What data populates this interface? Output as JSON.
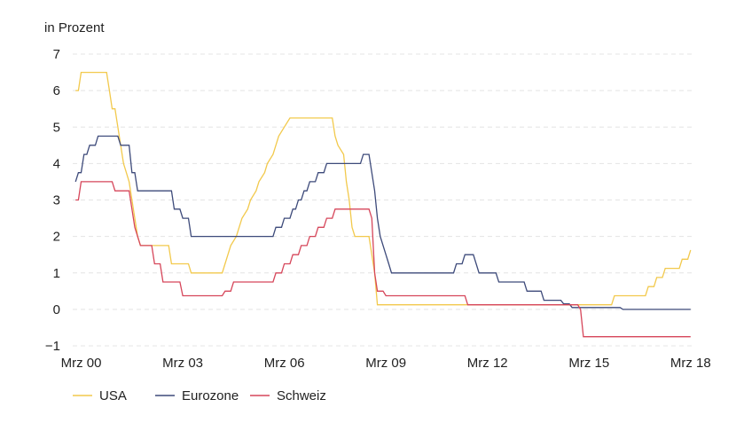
{
  "chart_data": {
    "type": "line",
    "ylabel": "in Prozent",
    "ylim": [
      -1,
      7
    ],
    "xlim": [
      "1999-12",
      "2018-04"
    ],
    "y_ticks": [
      "-1",
      "0",
      "1",
      "2",
      "3",
      "4",
      "5",
      "6",
      "7"
    ],
    "x_ticks": [
      {
        "label": "Mrz 00",
        "date": "2000-03"
      },
      {
        "label": "Mrz 03",
        "date": "2003-03"
      },
      {
        "label": "Mrz 06",
        "date": "2006-03"
      },
      {
        "label": "Mrz 09",
        "date": "2009-03"
      },
      {
        "label": "Mrz 12",
        "date": "2012-03"
      },
      {
        "label": "Mrz 15",
        "date": "2015-03"
      },
      {
        "label": "Mrz 18",
        "date": "2018-03"
      }
    ],
    "grid": "horizontal dashed",
    "legend_position": "bottom-left",
    "series": [
      {
        "name": "USA",
        "color": "#f2c94c",
        "points": [
          [
            "2000-01",
            6.0
          ],
          [
            "2000-02",
            6.0
          ],
          [
            "2000-03",
            6.5
          ],
          [
            "2000-05",
            6.5
          ],
          [
            "2000-12",
            6.5
          ],
          [
            "2001-01",
            6.0
          ],
          [
            "2001-02",
            5.5
          ],
          [
            "2001-03",
            5.5
          ],
          [
            "2001-04",
            5.0
          ],
          [
            "2001-05",
            4.5
          ],
          [
            "2001-06",
            4.0
          ],
          [
            "2001-07",
            3.75
          ],
          [
            "2001-08",
            3.5
          ],
          [
            "2001-09",
            3.0
          ],
          [
            "2001-10",
            2.5
          ],
          [
            "2001-11",
            2.0
          ],
          [
            "2001-12",
            1.75
          ],
          [
            "2002-10",
            1.75
          ],
          [
            "2002-11",
            1.25
          ],
          [
            "2003-05",
            1.25
          ],
          [
            "2003-06",
            1.0
          ],
          [
            "2004-05",
            1.0
          ],
          [
            "2004-06",
            1.25
          ],
          [
            "2004-07",
            1.5
          ],
          [
            "2004-08",
            1.75
          ],
          [
            "2004-10",
            2.0
          ],
          [
            "2004-11",
            2.25
          ],
          [
            "2004-12",
            2.5
          ],
          [
            "2005-02",
            2.75
          ],
          [
            "2005-03",
            3.0
          ],
          [
            "2005-05",
            3.25
          ],
          [
            "2005-06",
            3.5
          ],
          [
            "2005-08",
            3.75
          ],
          [
            "2005-09",
            4.0
          ],
          [
            "2005-11",
            4.25
          ],
          [
            "2005-12",
            4.5
          ],
          [
            "2006-01",
            4.75
          ],
          [
            "2006-03",
            5.0
          ],
          [
            "2006-05",
            5.25
          ],
          [
            "2007-08",
            5.25
          ],
          [
            "2007-09",
            4.75
          ],
          [
            "2007-10",
            4.5
          ],
          [
            "2007-12",
            4.25
          ],
          [
            "2008-01",
            3.5
          ],
          [
            "2008-02",
            3.0
          ],
          [
            "2008-03",
            2.25
          ],
          [
            "2008-04",
            2.0
          ],
          [
            "2008-09",
            2.0
          ],
          [
            "2008-10",
            1.5
          ],
          [
            "2008-11",
            1.0
          ],
          [
            "2008-12",
            0.125
          ],
          [
            "2015-11",
            0.125
          ],
          [
            "2015-12",
            0.375
          ],
          [
            "2016-11",
            0.375
          ],
          [
            "2016-12",
            0.625
          ],
          [
            "2017-02",
            0.625
          ],
          [
            "2017-03",
            0.875
          ],
          [
            "2017-05",
            0.875
          ],
          [
            "2017-06",
            1.125
          ],
          [
            "2017-11",
            1.125
          ],
          [
            "2017-12",
            1.375
          ],
          [
            "2018-02",
            1.375
          ],
          [
            "2018-03",
            1.625
          ]
        ]
      },
      {
        "name": "Eurozone",
        "color": "#3d4a7a",
        "points": [
          [
            "2000-01",
            3.5
          ],
          [
            "2000-02",
            3.75
          ],
          [
            "2000-03",
            3.75
          ],
          [
            "2000-04",
            4.25
          ],
          [
            "2000-05",
            4.25
          ],
          [
            "2000-06",
            4.5
          ],
          [
            "2000-08",
            4.5
          ],
          [
            "2000-09",
            4.75
          ],
          [
            "2000-10",
            4.75
          ],
          [
            "2001-04",
            4.75
          ],
          [
            "2001-05",
            4.5
          ],
          [
            "2001-08",
            4.5
          ],
          [
            "2001-09",
            3.75
          ],
          [
            "2001-10",
            3.75
          ],
          [
            "2001-11",
            3.25
          ],
          [
            "2002-11",
            3.25
          ],
          [
            "2002-12",
            2.75
          ],
          [
            "2003-02",
            2.75
          ],
          [
            "2003-03",
            2.5
          ],
          [
            "2003-05",
            2.5
          ],
          [
            "2003-06",
            2.0
          ],
          [
            "2005-11",
            2.0
          ],
          [
            "2005-12",
            2.25
          ],
          [
            "2006-02",
            2.25
          ],
          [
            "2006-03",
            2.5
          ],
          [
            "2006-05",
            2.5
          ],
          [
            "2006-06",
            2.75
          ],
          [
            "2006-07",
            2.75
          ],
          [
            "2006-08",
            3.0
          ],
          [
            "2006-09",
            3.0
          ],
          [
            "2006-10",
            3.25
          ],
          [
            "2006-11",
            3.25
          ],
          [
            "2006-12",
            3.5
          ],
          [
            "2007-02",
            3.5
          ],
          [
            "2007-03",
            3.75
          ],
          [
            "2007-05",
            3.75
          ],
          [
            "2007-06",
            4.0
          ],
          [
            "2008-06",
            4.0
          ],
          [
            "2008-07",
            4.25
          ],
          [
            "2008-09",
            4.25
          ],
          [
            "2008-10",
            3.75
          ],
          [
            "2008-11",
            3.25
          ],
          [
            "2008-12",
            2.5
          ],
          [
            "2009-01",
            2.0
          ],
          [
            "2009-03",
            1.5
          ],
          [
            "2009-04",
            1.25
          ],
          [
            "2009-05",
            1.0
          ],
          [
            "2011-03",
            1.0
          ],
          [
            "2011-04",
            1.25
          ],
          [
            "2011-06",
            1.25
          ],
          [
            "2011-07",
            1.5
          ],
          [
            "2011-10",
            1.5
          ],
          [
            "2011-11",
            1.25
          ],
          [
            "2011-12",
            1.0
          ],
          [
            "2012-06",
            1.0
          ],
          [
            "2012-07",
            0.75
          ],
          [
            "2013-04",
            0.75
          ],
          [
            "2013-05",
            0.5
          ],
          [
            "2013-10",
            0.5
          ],
          [
            "2013-11",
            0.25
          ],
          [
            "2014-05",
            0.25
          ],
          [
            "2014-06",
            0.15
          ],
          [
            "2014-08",
            0.15
          ],
          [
            "2014-09",
            0.05
          ],
          [
            "2016-02",
            0.05
          ],
          [
            "2016-03",
            0.0
          ],
          [
            "2018-03",
            0.0
          ]
        ]
      },
      {
        "name": "Schweiz",
        "color": "#d6465a",
        "points": [
          [
            "2000-01",
            3.0
          ],
          [
            "2000-02",
            3.0
          ],
          [
            "2000-03",
            3.5
          ],
          [
            "2000-05",
            3.5
          ],
          [
            "2001-02",
            3.5
          ],
          [
            "2001-03",
            3.25
          ],
          [
            "2001-08",
            3.25
          ],
          [
            "2001-09",
            2.75
          ],
          [
            "2001-10",
            2.25
          ],
          [
            "2001-12",
            1.75
          ],
          [
            "2002-04",
            1.75
          ],
          [
            "2002-05",
            1.25
          ],
          [
            "2002-07",
            1.25
          ],
          [
            "2002-08",
            0.75
          ],
          [
            "2003-02",
            0.75
          ],
          [
            "2003-03",
            0.375
          ],
          [
            "2004-05",
            0.375
          ],
          [
            "2004-06",
            0.5
          ],
          [
            "2004-08",
            0.5
          ],
          [
            "2004-09",
            0.75
          ],
          [
            "2005-11",
            0.75
          ],
          [
            "2005-12",
            1.0
          ],
          [
            "2006-02",
            1.0
          ],
          [
            "2006-03",
            1.25
          ],
          [
            "2006-05",
            1.25
          ],
          [
            "2006-06",
            1.5
          ],
          [
            "2006-08",
            1.5
          ],
          [
            "2006-09",
            1.75
          ],
          [
            "2006-11",
            1.75
          ],
          [
            "2006-12",
            2.0
          ],
          [
            "2007-02",
            2.0
          ],
          [
            "2007-03",
            2.25
          ],
          [
            "2007-05",
            2.25
          ],
          [
            "2007-06",
            2.5
          ],
          [
            "2007-08",
            2.5
          ],
          [
            "2007-09",
            2.75
          ],
          [
            "2008-09",
            2.75
          ],
          [
            "2008-10",
            2.5
          ],
          [
            "2008-11",
            1.0
          ],
          [
            "2008-12",
            0.5
          ],
          [
            "2009-02",
            0.5
          ],
          [
            "2009-03",
            0.375
          ],
          [
            "2011-07",
            0.375
          ],
          [
            "2011-08",
            0.125
          ],
          [
            "2014-11",
            0.125
          ],
          [
            "2014-12",
            0.0
          ],
          [
            "2015-01",
            -0.75
          ],
          [
            "2018-03",
            -0.75
          ]
        ]
      }
    ]
  }
}
